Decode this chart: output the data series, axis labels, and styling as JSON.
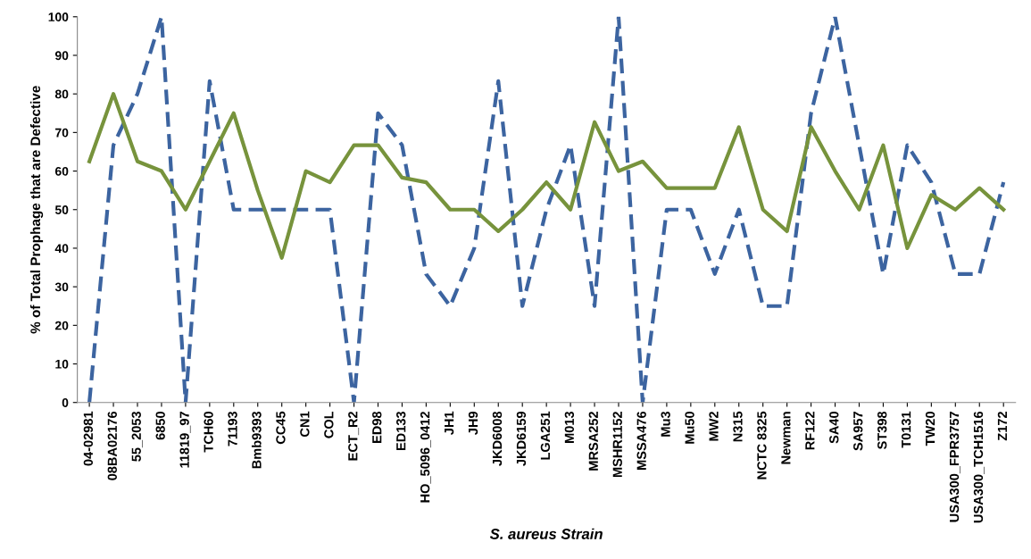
{
  "chart_data": {
    "type": "line",
    "xlabel": "S. aureus Strain",
    "ylabel": "% of Total Prophage that are Defective",
    "categories": [
      "04-02981",
      "08BA02176",
      "55_2053",
      "6850",
      "11819_97",
      "TCH60",
      "71193",
      "Bmb9393",
      "CC45",
      "CN1",
      "COL",
      "ECT_R2",
      "ED98",
      "ED133",
      "HO_5096_0412",
      "JH1",
      "JH9",
      "JKD6008",
      "JKD6159",
      "LGA251",
      "M013",
      "MRSA252",
      "MSHR1152",
      "MSSA476",
      "Mu3",
      "Mu50",
      "MW2",
      "N315",
      "NCTC 8325",
      "Newman",
      "RF122",
      "SA40",
      "SA957",
      "ST398",
      "T0131",
      "TW20",
      "USA300_FPR3757",
      "USA300_TCH1516",
      "Z172"
    ],
    "series": [
      {
        "color": "#3c64a0",
        "line_style": "dashed",
        "values": [
          0,
          66.7,
          80,
          100,
          0,
          83.3,
          50,
          50,
          50,
          50,
          50,
          0,
          75,
          66.7,
          33.3,
          25,
          40,
          83.3,
          25,
          50,
          66.7,
          25,
          100,
          0,
          50,
          50,
          33.3,
          50,
          25,
          25,
          75,
          100,
          66.7,
          33.3,
          66.7,
          57.1,
          33.3,
          33.3,
          57.1
        ]
      },
      {
        "color": "#77933c",
        "line_style": "solid",
        "values": [
          62.5,
          80,
          62.5,
          60,
          50,
          62.5,
          75,
          55,
          37.5,
          60,
          57.1,
          66.7,
          66.7,
          58.3,
          57.1,
          50,
          50,
          44.4,
          50,
          57.1,
          50,
          72.7,
          60,
          62.5,
          55.6,
          55.6,
          55.6,
          71.4,
          50,
          44.4,
          71.4,
          60,
          50,
          66.7,
          40,
          53.8,
          50,
          55.6,
          50
        ]
      }
    ],
    "ylim": [
      0,
      100
    ],
    "yticks": [
      0,
      10,
      20,
      30,
      40,
      50,
      60,
      70,
      80,
      90,
      100
    ],
    "grid": false,
    "marker": "none"
  }
}
